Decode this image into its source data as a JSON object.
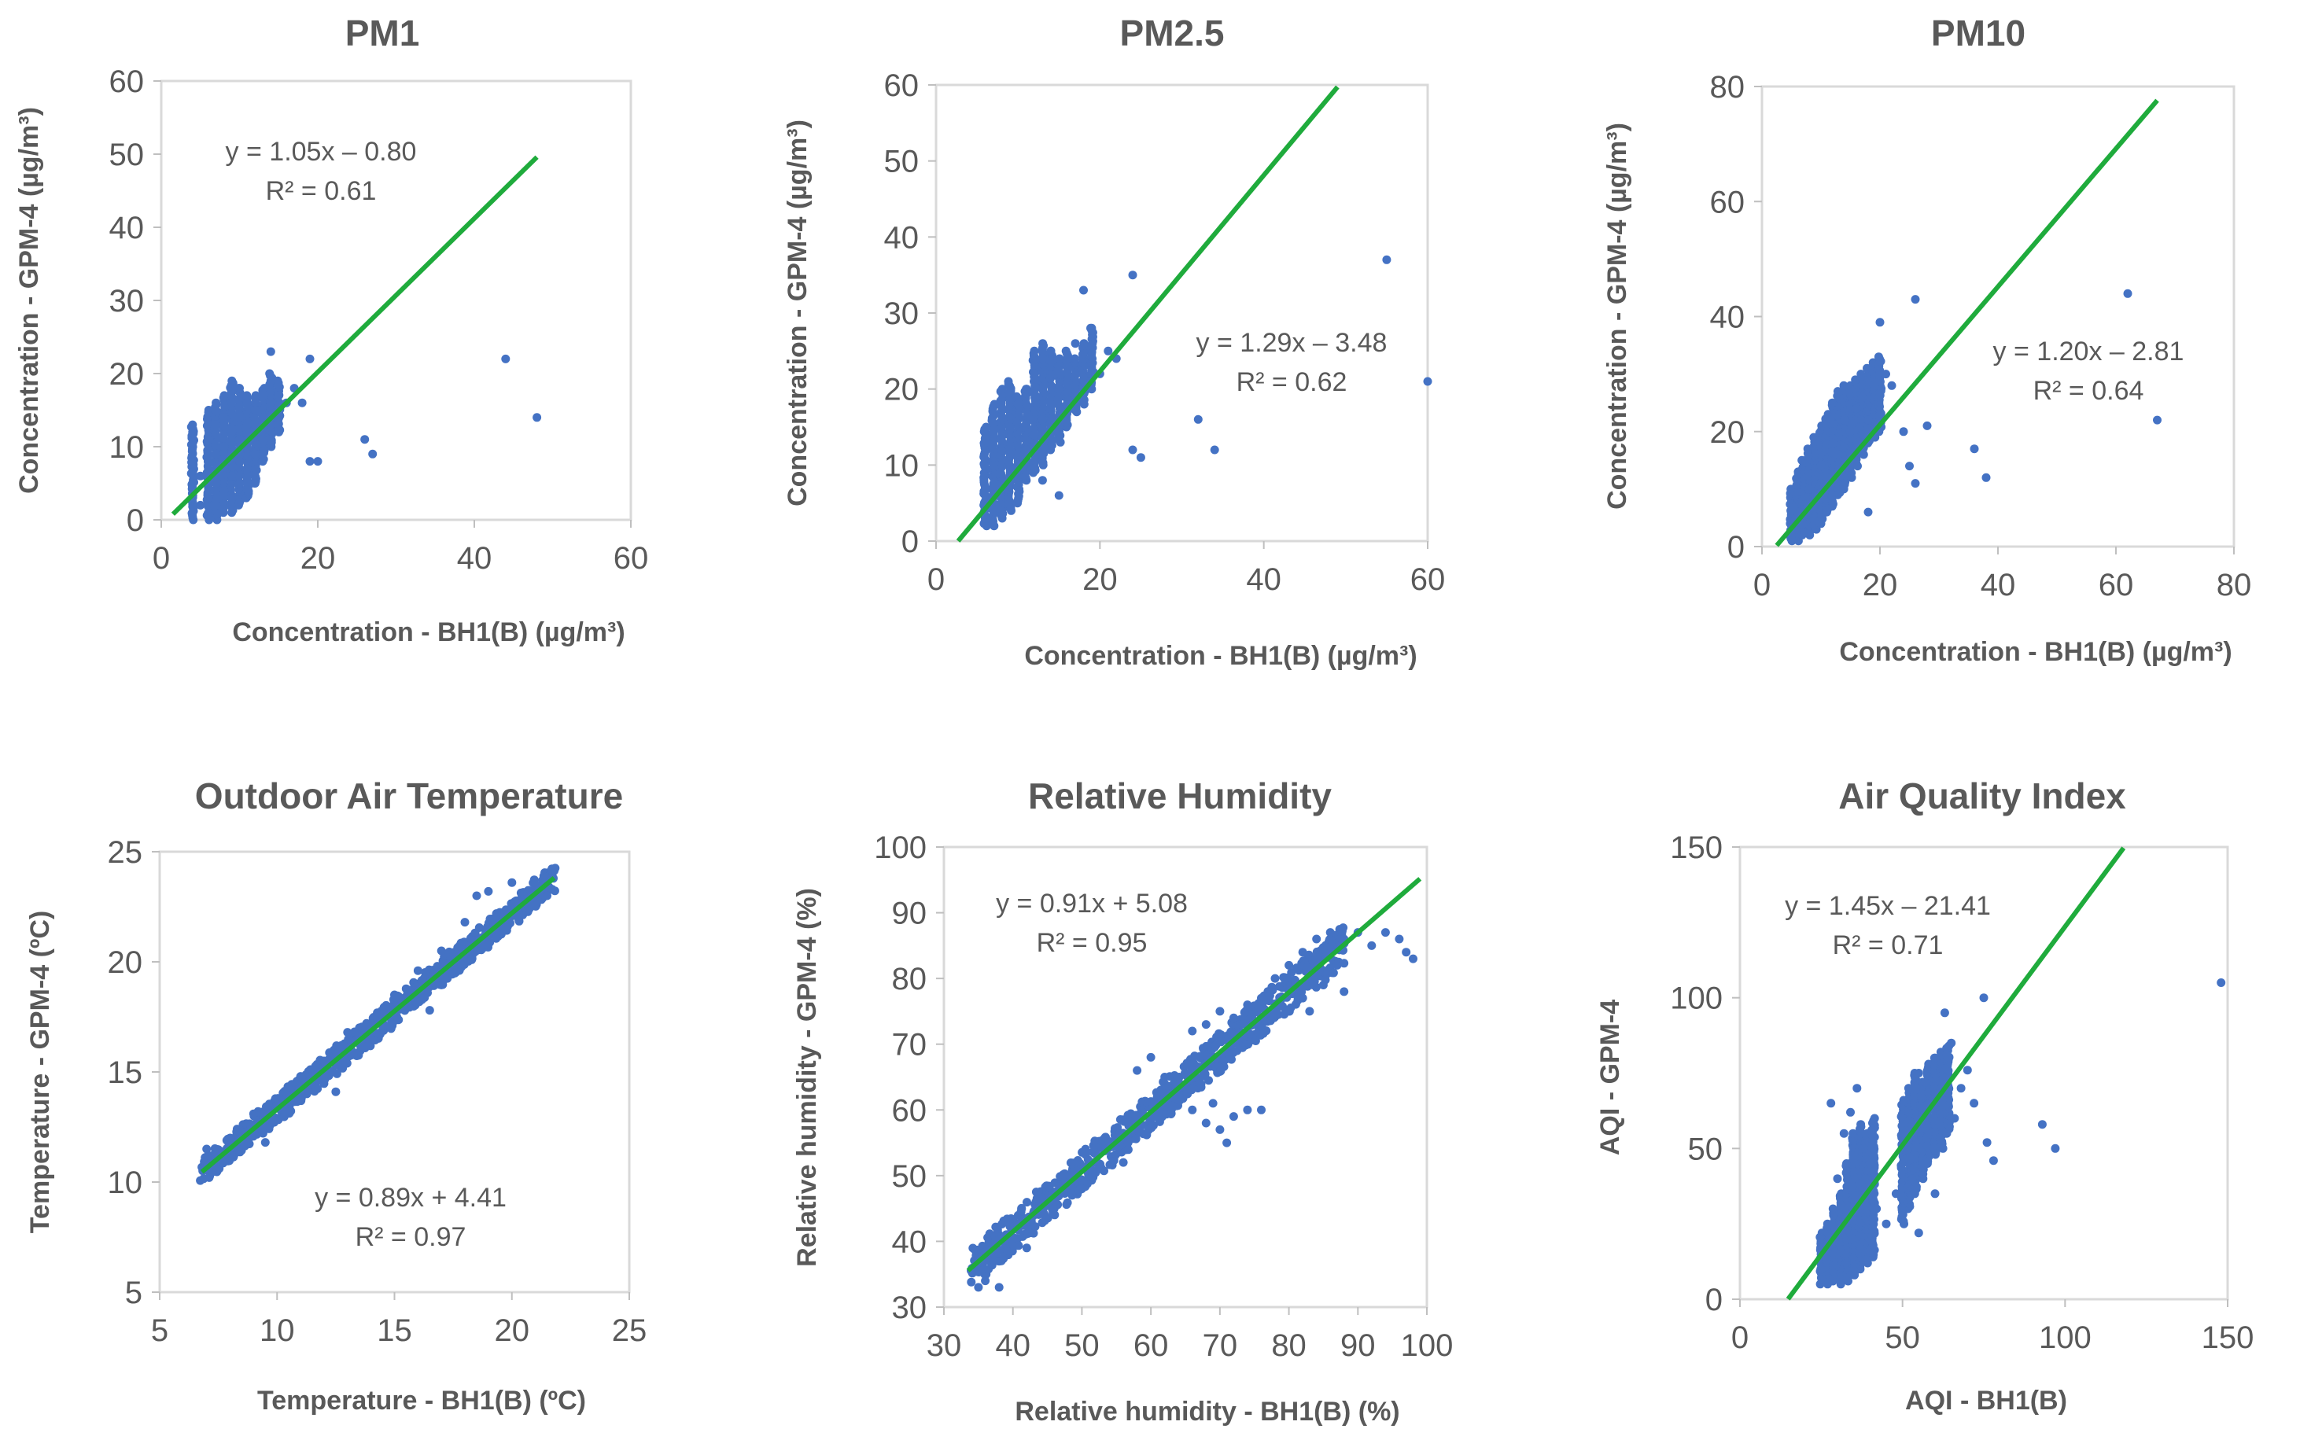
{
  "colors": {
    "points": "#4472c4",
    "fit_line": "#1fab3c",
    "text": "#595959",
    "frame": "#d9d9d9"
  },
  "chart_data": [
    {
      "type": "scatter",
      "title": "PM1",
      "xlabel": "Concentration  - BH1(B) (µg/m³)",
      "ylabel": "Concentration  -  GPM-4 (µg/m³)",
      "xlim": [
        0,
        60
      ],
      "ylim": [
        0,
        60
      ],
      "xticks": [
        "0",
        "20",
        "40",
        "60"
      ],
      "yticks": [
        "0",
        "10",
        "20",
        "30",
        "40",
        "50",
        "60"
      ],
      "xtick_values": [
        0,
        20,
        40,
        60
      ],
      "ytick_values": [
        0,
        10,
        20,
        30,
        40,
        50,
        60
      ],
      "fit": {
        "slope": 1.05,
        "intercept": -0.8,
        "x_range": [
          1.5,
          48
        ]
      },
      "equation": "y = 1.05x – 0.80",
      "r2": "R² = 0.61",
      "points": [
        [
          4,
          1
        ],
        [
          4,
          3
        ],
        [
          4,
          5
        ],
        [
          4,
          8
        ],
        [
          4,
          12
        ],
        [
          5,
          2
        ],
        [
          5,
          6
        ],
        [
          6,
          3
        ],
        [
          6,
          8
        ],
        [
          6,
          11
        ],
        [
          7,
          2
        ],
        [
          7,
          5
        ],
        [
          7,
          9
        ],
        [
          7,
          13
        ],
        [
          8,
          4
        ],
        [
          8,
          7
        ],
        [
          8,
          10
        ],
        [
          8,
          14
        ],
        [
          9,
          3
        ],
        [
          9,
          6
        ],
        [
          9,
          9
        ],
        [
          9,
          12
        ],
        [
          9,
          16
        ],
        [
          10,
          5
        ],
        [
          10,
          8
        ],
        [
          10,
          11
        ],
        [
          10,
          14
        ],
        [
          10,
          18
        ],
        [
          11,
          7
        ],
        [
          11,
          10
        ],
        [
          11,
          13
        ],
        [
          11,
          16
        ],
        [
          12,
          9
        ],
        [
          12,
          12
        ],
        [
          12,
          15
        ],
        [
          13,
          11
        ],
        [
          13,
          14
        ],
        [
          13,
          17
        ],
        [
          14,
          13
        ],
        [
          14,
          16
        ],
        [
          14,
          19
        ],
        [
          15,
          14
        ],
        [
          15,
          17
        ],
        [
          16,
          16
        ],
        [
          17,
          18
        ],
        [
          18,
          16
        ],
        [
          19,
          22
        ],
        [
          19,
          8
        ],
        [
          20,
          8
        ],
        [
          14,
          23
        ],
        [
          12,
          5
        ],
        [
          26,
          11
        ],
        [
          27,
          9
        ],
        [
          44,
          22
        ],
        [
          48,
          14
        ]
      ],
      "clusters": [
        [
          4,
          0,
          13
        ],
        [
          6,
          0,
          15
        ],
        [
          7,
          0,
          16
        ],
        [
          8,
          1,
          17
        ],
        [
          9,
          1,
          19
        ],
        [
          10,
          2,
          18
        ],
        [
          11,
          3,
          17
        ],
        [
          12,
          5,
          17
        ],
        [
          13,
          8,
          18
        ],
        [
          14,
          10,
          20
        ],
        [
          15,
          12,
          19
        ]
      ]
    },
    {
      "type": "scatter",
      "title": "PM2.5",
      "xlabel": "Concentration  - BH1(B) (µg/m³)",
      "ylabel": "Concentration  -  GPM-4 (µg/m³)",
      "xlim": [
        0,
        60
      ],
      "ylim": [
        0,
        60
      ],
      "xticks": [
        "0",
        "20",
        "40",
        "60"
      ],
      "yticks": [
        "0",
        "10",
        "20",
        "30",
        "40",
        "50",
        "60"
      ],
      "xtick_values": [
        0,
        20,
        40,
        60
      ],
      "ytick_values": [
        0,
        10,
        20,
        30,
        40,
        50,
        60
      ],
      "fit": {
        "slope": 1.29,
        "intercept": -3.48,
        "x_range": [
          2.7,
          49
        ]
      },
      "equation": "y = 1.29x – 3.48",
      "r2": "R² = 0.62",
      "points": [
        [
          6,
          3
        ],
        [
          6,
          7
        ],
        [
          7,
          5
        ],
        [
          7,
          10
        ],
        [
          8,
          4
        ],
        [
          8,
          12
        ],
        [
          9,
          8
        ],
        [
          9,
          15
        ],
        [
          10,
          10
        ],
        [
          10,
          18
        ],
        [
          11,
          12
        ],
        [
          11,
          20
        ],
        [
          12,
          14
        ],
        [
          12,
          22
        ],
        [
          13,
          16
        ],
        [
          13,
          24
        ],
        [
          14,
          18
        ],
        [
          14,
          25
        ],
        [
          15,
          20
        ],
        [
          15,
          22
        ],
        [
          16,
          24
        ],
        [
          17,
          26
        ],
        [
          18,
          33
        ],
        [
          19,
          28
        ],
        [
          20,
          22
        ],
        [
          21,
          25
        ],
        [
          22,
          24
        ],
        [
          24,
          35
        ],
        [
          24,
          12
        ],
        [
          25,
          11
        ],
        [
          32,
          16
        ],
        [
          34,
          12
        ],
        [
          55,
          37
        ],
        [
          60,
          21
        ],
        [
          15,
          6
        ],
        [
          13,
          8
        ]
      ],
      "clusters": [
        [
          6,
          2,
          15
        ],
        [
          7,
          2,
          18
        ],
        [
          8,
          3,
          20
        ],
        [
          9,
          4,
          21
        ],
        [
          10,
          5,
          19
        ],
        [
          11,
          8,
          20
        ],
        [
          12,
          9,
          25
        ],
        [
          13,
          10,
          26
        ],
        [
          14,
          12,
          25
        ],
        [
          15,
          13,
          24
        ],
        [
          16,
          15,
          25
        ],
        [
          17,
          17,
          24
        ],
        [
          18,
          18,
          26
        ],
        [
          19,
          20,
          28
        ]
      ]
    },
    {
      "type": "scatter",
      "title": "PM10",
      "xlabel": "Concentration  - BH1(B) (µg/m³)",
      "ylabel": "Concentration  -  GPM-4 (µg/m³)",
      "xlim": [
        0,
        80
      ],
      "ylim": [
        0,
        80
      ],
      "xticks": [
        "0",
        "20",
        "40",
        "60",
        "80"
      ],
      "yticks": [
        "0",
        "20",
        "40",
        "60",
        "80"
      ],
      "xtick_values": [
        0,
        20,
        40,
        60,
        80
      ],
      "ytick_values": [
        0,
        20,
        40,
        60,
        80
      ],
      "fit": {
        "slope": 1.2,
        "intercept": -2.81,
        "x_range": [
          2.5,
          67
        ]
      },
      "equation": "y = 1.20x – 2.81",
      "r2": "R² = 0.64",
      "points": [
        [
          5,
          2
        ],
        [
          6,
          6
        ],
        [
          7,
          4
        ],
        [
          8,
          10
        ],
        [
          9,
          8
        ],
        [
          10,
          14
        ],
        [
          11,
          12
        ],
        [
          12,
          18
        ],
        [
          13,
          16
        ],
        [
          14,
          22
        ],
        [
          15,
          20
        ],
        [
          16,
          24
        ],
        [
          17,
          26
        ],
        [
          18,
          22
        ],
        [
          19,
          28
        ],
        [
          20,
          39
        ],
        [
          21,
          30
        ],
        [
          22,
          28
        ],
        [
          24,
          20
        ],
        [
          25,
          14
        ],
        [
          26,
          11
        ],
        [
          26,
          43
        ],
        [
          28,
          21
        ],
        [
          36,
          17
        ],
        [
          38,
          12
        ],
        [
          62,
          44
        ],
        [
          67,
          22
        ],
        [
          18,
          6
        ],
        [
          12,
          9
        ]
      ],
      "clusters": [
        [
          5,
          1,
          10
        ],
        [
          6,
          1,
          13
        ],
        [
          7,
          2,
          15
        ],
        [
          8,
          2,
          17
        ],
        [
          9,
          3,
          19
        ],
        [
          10,
          4,
          21
        ],
        [
          11,
          6,
          23
        ],
        [
          12,
          7,
          25
        ],
        [
          13,
          9,
          27
        ],
        [
          14,
          10,
          28
        ],
        [
          15,
          12,
          28
        ],
        [
          16,
          14,
          29
        ],
        [
          17,
          16,
          30
        ],
        [
          18,
          18,
          31
        ],
        [
          19,
          19,
          32
        ],
        [
          20,
          20,
          33
        ]
      ]
    },
    {
      "type": "scatter",
      "title": "Outdoor Air Temperature",
      "xlabel": "Temperature - BH1(B) (ºC)",
      "ylabel": "Temperature - GPM-4 (ºC)",
      "xlim": [
        5,
        25
      ],
      "ylim": [
        5,
        25
      ],
      "xticks": [
        "5",
        "10",
        "15",
        "20",
        "25"
      ],
      "yticks": [
        "5",
        "10",
        "15",
        "20",
        "25"
      ],
      "xtick_values": [
        5,
        10,
        15,
        20,
        25
      ],
      "ytick_values": [
        5,
        10,
        15,
        20,
        25
      ],
      "fit": {
        "slope": 0.89,
        "intercept": 4.41,
        "x_range": [
          6.8,
          21.8
        ]
      },
      "equation": "y = 0.89x + 4.41",
      "r2": "R² = 0.97",
      "band": {
        "x_range": [
          6.8,
          21.8
        ],
        "y_spread": 0.6
      },
      "points": [
        [
          7,
          11.5
        ],
        [
          8,
          12
        ],
        [
          9,
          13.1
        ],
        [
          10,
          13.5
        ],
        [
          11,
          14.8
        ],
        [
          12,
          15.5
        ],
        [
          13,
          16.8
        ],
        [
          14,
          17.2
        ],
        [
          15,
          18.5
        ],
        [
          16,
          19.6
        ],
        [
          17,
          20.5
        ],
        [
          18,
          21.8
        ],
        [
          18.5,
          23
        ],
        [
          19,
          23.2
        ],
        [
          20,
          23.6
        ],
        [
          21,
          23.5
        ],
        [
          21.5,
          23
        ],
        [
          9.5,
          11.8
        ],
        [
          12.5,
          14.1
        ],
        [
          16.5,
          17.8
        ]
      ]
    },
    {
      "type": "scatter",
      "title": "Relative Humidity",
      "xlabel": "Relative humidity - BH1(B) (%)",
      "ylabel": "Relative humidity  -  GPM-4 (%)",
      "xlim": [
        30,
        100
      ],
      "ylim": [
        30,
        100
      ],
      "xticks": [
        "30",
        "40",
        "50",
        "60",
        "70",
        "80",
        "90",
        "100"
      ],
      "yticks": [
        "30",
        "40",
        "50",
        "60",
        "70",
        "80",
        "90",
        "100"
      ],
      "xtick_values": [
        30,
        40,
        50,
        60,
        70,
        80,
        90,
        100
      ],
      "ytick_values": [
        30,
        40,
        50,
        60,
        70,
        80,
        90,
        100
      ],
      "fit": {
        "slope": 0.91,
        "intercept": 5.08,
        "x_range": [
          33.5,
          99
        ]
      },
      "equation": "y = 0.91x + 5.08",
      "r2": "R² = 0.95",
      "band": {
        "x_range": [
          34,
          88
        ],
        "y_spread": 3
      },
      "points": [
        [
          66,
          72
        ],
        [
          68,
          73
        ],
        [
          70,
          75
        ],
        [
          72,
          74
        ],
        [
          74,
          76
        ],
        [
          76,
          77
        ],
        [
          78,
          80
        ],
        [
          80,
          82
        ],
        [
          82,
          84
        ],
        [
          84,
          86
        ],
        [
          86,
          87
        ],
        [
          88,
          86
        ],
        [
          90,
          87
        ],
        [
          92,
          85
        ],
        [
          94,
          87
        ],
        [
          96,
          86
        ],
        [
          98,
          83
        ],
        [
          97,
          84
        ],
        [
          66,
          60
        ],
        [
          68,
          58
        ],
        [
          70,
          57
        ],
        [
          72,
          59
        ],
        [
          74,
          60
        ],
        [
          64,
          62
        ],
        [
          62,
          65
        ],
        [
          76,
          60
        ],
        [
          71,
          55
        ],
        [
          69,
          61
        ],
        [
          60,
          68
        ],
        [
          58,
          66
        ],
        [
          80,
          78
        ],
        [
          83,
          75
        ],
        [
          85,
          79
        ],
        [
          87,
          82
        ],
        [
          88,
          78
        ],
        [
          35,
          33
        ],
        [
          36,
          34
        ],
        [
          38,
          33
        ],
        [
          42,
          39
        ],
        [
          46,
          45
        ],
        [
          50,
          48
        ],
        [
          54,
          55
        ],
        [
          56,
          52
        ]
      ]
    },
    {
      "type": "scatter",
      "title": "Air Quality Index",
      "xlabel": "AQI - BH1(B)",
      "ylabel": "AQI - GPM-4",
      "xlim": [
        0,
        150
      ],
      "ylim": [
        0,
        150
      ],
      "xticks": [
        "0",
        "50",
        "100",
        "150"
      ],
      "yticks": [
        "0",
        "50",
        "100",
        "150"
      ],
      "xtick_values": [
        0,
        50,
        100,
        150
      ],
      "ytick_values": [
        0,
        50,
        100,
        150
      ],
      "fit": {
        "slope": 1.45,
        "intercept": -21.41,
        "x_range": [
          14.8,
          118
        ]
      },
      "equation": "y = 1.45x – 21.41",
      "r2": "R² = 0.71",
      "points": [
        [
          25,
          10
        ],
        [
          27,
          22
        ],
        [
          28,
          65
        ],
        [
          30,
          40
        ],
        [
          32,
          55
        ],
        [
          34,
          62
        ],
        [
          36,
          70
        ],
        [
          38,
          50
        ],
        [
          40,
          45
        ],
        [
          42,
          30
        ],
        [
          45,
          25
        ],
        [
          48,
          35
        ],
        [
          50,
          55
        ],
        [
          52,
          62
        ],
        [
          55,
          75
        ],
        [
          57,
          72
        ],
        [
          60,
          80
        ],
        [
          62,
          70
        ],
        [
          63,
          95
        ],
        [
          65,
          85
        ],
        [
          66,
          60
        ],
        [
          68,
          70
        ],
        [
          70,
          76
        ],
        [
          72,
          65
        ],
        [
          75,
          100
        ],
        [
          76,
          52
        ],
        [
          78,
          46
        ],
        [
          93,
          58
        ],
        [
          97,
          50
        ],
        [
          148,
          105
        ],
        [
          55,
          22
        ],
        [
          60,
          35
        ],
        [
          53,
          40
        ]
      ],
      "clusters": [
        [
          25,
          5,
          22
        ],
        [
          27,
          5,
          25
        ],
        [
          29,
          6,
          30
        ],
        [
          31,
          5,
          35
        ],
        [
          33,
          6,
          45
        ],
        [
          35,
          8,
          55
        ],
        [
          37,
          10,
          58
        ],
        [
          39,
          12,
          55
        ],
        [
          41,
          14,
          60
        ],
        [
          50,
          25,
          66
        ],
        [
          52,
          30,
          70
        ],
        [
          54,
          35,
          75
        ],
        [
          56,
          40,
          72
        ],
        [
          58,
          45,
          78
        ],
        [
          60,
          48,
          80
        ],
        [
          62,
          50,
          82
        ],
        [
          64,
          55,
          84
        ]
      ]
    }
  ]
}
